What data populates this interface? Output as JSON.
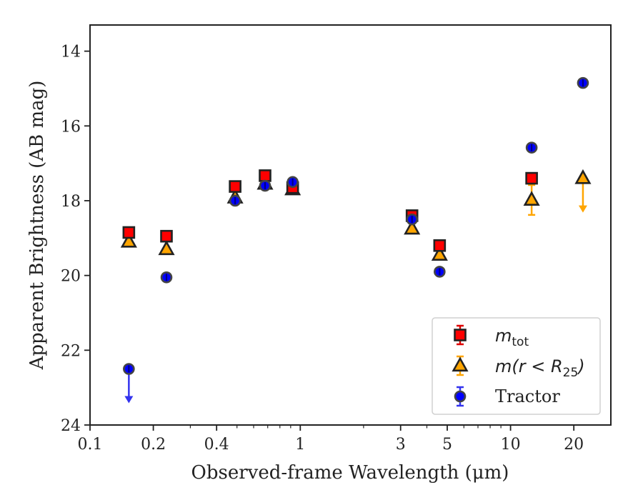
{
  "chart_data": {
    "type": "scatter",
    "xlabel": "Observed-frame Wavelength (μm)",
    "ylabel": "Apparent Brightness (AB mag)",
    "xscale": "log",
    "xlim": [
      0.1,
      30
    ],
    "ylim": [
      24,
      13.3
    ],
    "y_inverted": true,
    "x_ticks": [
      0.1,
      0.2,
      0.4,
      1,
      3,
      5,
      10,
      20
    ],
    "x_tick_labels": [
      "0.1",
      "0.2",
      "0.4",
      "1",
      "3",
      "5",
      "10",
      "20"
    ],
    "y_ticks": [
      14,
      16,
      18,
      20,
      22,
      24
    ],
    "y_tick_labels": [
      "14",
      "16",
      "18",
      "20",
      "22",
      "24"
    ],
    "legend_position": "bottom-right",
    "series": [
      {
        "name": "m_tot",
        "legend": {
          "main": "m",
          "sub": "tot"
        },
        "marker": "square",
        "color": "#ff0000",
        "edge_color": "#222222",
        "errbar_color": "#dd0000",
        "x": [
          0.153,
          0.231,
          0.49,
          0.68,
          0.92,
          3.4,
          4.6,
          12.6
        ],
        "y": [
          18.85,
          18.95,
          17.62,
          17.33,
          17.65,
          18.4,
          19.2,
          17.4
        ]
      },
      {
        "name": "m(r < R_25)",
        "legend": {
          "main": "m(r < R",
          "sub": "25",
          "suffix": ")"
        },
        "marker": "triangle",
        "color": "#ffa500",
        "edge_color": "#222222",
        "errbar_color": "#ffa500",
        "x": [
          0.153,
          0.231,
          0.49,
          0.68,
          0.92,
          3.4,
          4.6,
          12.6,
          22.1
        ],
        "y": [
          19.1,
          19.3,
          17.92,
          17.55,
          17.7,
          18.75,
          19.45,
          17.98,
          17.4
        ],
        "yerr": [
          null,
          null,
          null,
          null,
          null,
          null,
          null,
          0.4,
          null
        ],
        "upper_limit": [
          false,
          false,
          false,
          false,
          false,
          false,
          false,
          false,
          true
        ]
      },
      {
        "name": "Tractor",
        "legend": {
          "main": "Tractor"
        },
        "marker": "circle",
        "color": "#0000ff",
        "edge_color": "#444444",
        "errbar_color": "#3333ee",
        "x": [
          0.153,
          0.231,
          0.49,
          0.68,
          0.92,
          3.4,
          4.6,
          12.6,
          22.1
        ],
        "y": [
          22.5,
          20.05,
          18.0,
          17.6,
          17.5,
          18.5,
          19.9,
          16.58,
          14.85
        ],
        "upper_limit": [
          true,
          false,
          false,
          false,
          false,
          false,
          false,
          false,
          false
        ]
      }
    ]
  }
}
